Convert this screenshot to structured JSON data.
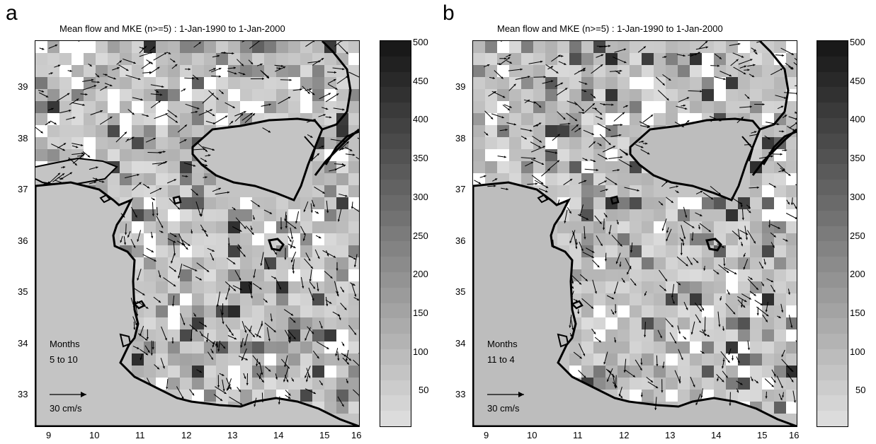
{
  "panels": [
    {
      "letter": "a",
      "title": "Mean flow and MKE (n>=5) : 1-Jan-1990 to 1-Jan-2000",
      "months_label": "Months",
      "months_range": "5 to 10",
      "scale_label": "30 cm/s",
      "ocean_gray": "#c2c2c2",
      "x_ticks": [
        "9",
        "10",
        "11",
        "12",
        "13",
        "14",
        "15",
        "16"
      ],
      "y_ticks": [
        "39",
        "38",
        "37",
        "36",
        "35",
        "34",
        "33"
      ],
      "colorbar_ticks": [
        "500",
        "450",
        "400",
        "350",
        "300",
        "250",
        "200",
        "150",
        "100",
        "50"
      ]
    },
    {
      "letter": "b",
      "title": "Mean flow and MKE (n>=5) : 1-Jan-1990 to 1-Jan-2000",
      "months_label": "Months",
      "months_range": "11 to 4",
      "scale_label": "30 cm/s",
      "ocean_gray": "#bdbdbd",
      "x_ticks": [
        "9",
        "10",
        "11",
        "12",
        "13",
        "14",
        "15",
        "16"
      ],
      "y_ticks": [
        "39",
        "38",
        "37",
        "36",
        "35",
        "34",
        "33"
      ],
      "colorbar_ticks": [
        "500",
        "450",
        "400",
        "350",
        "300",
        "250",
        "200",
        "150",
        "100",
        "50"
      ]
    }
  ],
  "colors": {
    "land": "#c4c4c4",
    "coast": "#000000",
    "dark_mke": "#222222",
    "low_mke": "#d6d6d6"
  }
}
